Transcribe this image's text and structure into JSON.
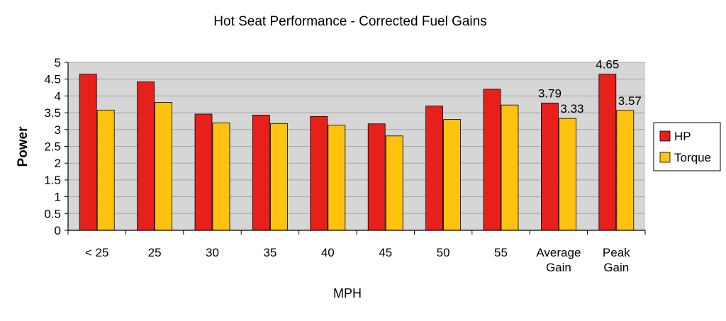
{
  "chart_data": {
    "type": "bar",
    "title": "Hot Seat Performance - Corrected Fuel Gains",
    "xlabel": "MPH",
    "ylabel": "Power",
    "ylim": [
      0,
      5
    ],
    "yticks": [
      "0",
      "0.5",
      "1",
      "1.5",
      "2",
      "2.5",
      "3",
      "3.5",
      "4",
      "4.5",
      "5"
    ],
    "grid": true,
    "legend_position": "right",
    "categories": [
      [
        "< 25"
      ],
      [
        "25"
      ],
      [
        "30"
      ],
      [
        "35"
      ],
      [
        "40"
      ],
      [
        "45"
      ],
      [
        "50"
      ],
      [
        "55"
      ],
      [
        "Average",
        "Gain"
      ],
      [
        "Peak",
        "Gain"
      ]
    ],
    "series": [
      {
        "name": "HP",
        "color": "#e8201c",
        "values": [
          4.65,
          4.42,
          3.46,
          3.43,
          3.39,
          3.17,
          3.7,
          4.2,
          3.79,
          4.65
        ]
      },
      {
        "name": "Torque",
        "color": "#ffc20e",
        "values": [
          3.58,
          3.81,
          3.2,
          3.18,
          3.13,
          2.81,
          3.3,
          3.73,
          3.33,
          3.57
        ]
      }
    ],
    "data_labels": [
      {
        "series": 0,
        "index": 8,
        "text": "3.79"
      },
      {
        "series": 1,
        "index": 8,
        "text": "3.33"
      },
      {
        "series": 0,
        "index": 9,
        "text": "4.65"
      },
      {
        "series": 1,
        "index": 9,
        "text": "3.57"
      }
    ],
    "colors": {
      "plot_bg": "#d6d6d6",
      "grid": "#a5a5a5"
    }
  }
}
